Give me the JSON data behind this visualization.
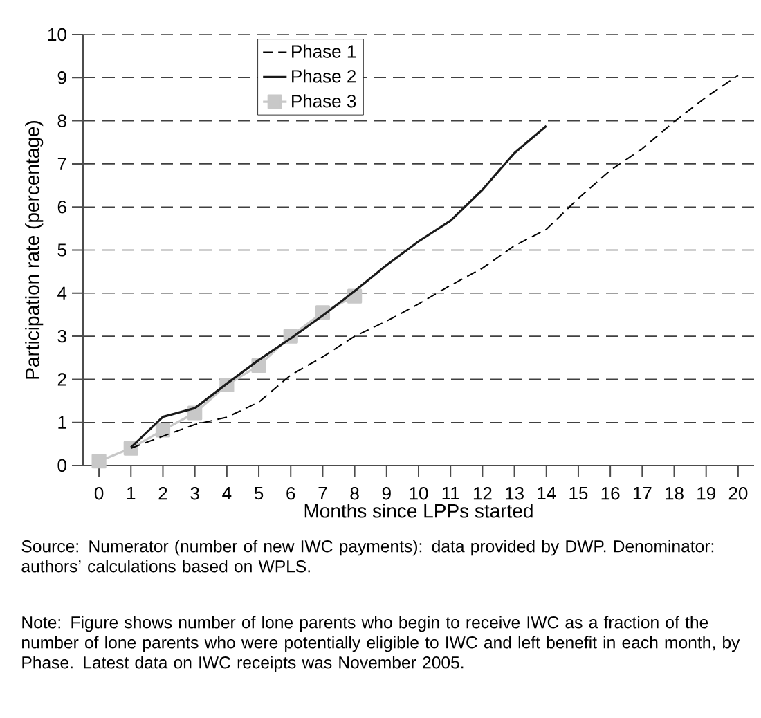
{
  "chart_data": {
    "type": "line",
    "xlabel": "Months since LPPs started",
    "ylabel": "Participation rate (percentage)",
    "x": [
      0,
      1,
      2,
      3,
      4,
      5,
      6,
      7,
      8,
      9,
      10,
      11,
      12,
      13,
      14,
      15,
      16,
      17,
      18,
      19,
      20
    ],
    "xlim": [
      -0.5,
      20.5
    ],
    "xticks": [
      0,
      1,
      2,
      3,
      4,
      5,
      6,
      7,
      8,
      9,
      10,
      11,
      12,
      13,
      14,
      15,
      16,
      17,
      18,
      19,
      20
    ],
    "ylim": [
      0,
      10
    ],
    "yticks": [
      0,
      1,
      2,
      3,
      4,
      5,
      6,
      7,
      8,
      9,
      10
    ],
    "grid": "y",
    "legend": "top left",
    "series": [
      {
        "name": "Phase 1",
        "color": "#000000",
        "line_style": "dashed",
        "marker": "none",
        "values": [
          null,
          0.4,
          0.68,
          0.95,
          1.12,
          1.47,
          2.1,
          2.52,
          3.0,
          3.35,
          3.75,
          4.18,
          4.58,
          5.1,
          5.48,
          6.2,
          6.85,
          7.35,
          7.98,
          8.55,
          9.05
        ]
      },
      {
        "name": "Phase 2",
        "color": "#1a1a1a",
        "line_style": "solid",
        "marker": "none",
        "values": [
          null,
          0.42,
          1.13,
          1.33,
          1.9,
          2.45,
          2.95,
          3.48,
          4.05,
          4.65,
          5.2,
          5.68,
          6.4,
          7.25,
          7.88,
          null,
          null,
          null,
          null,
          null,
          null
        ]
      },
      {
        "name": "Phase 3",
        "color": "#c8c8c8",
        "line_style": "solid",
        "marker": "square",
        "values": [
          0.1,
          0.4,
          0.82,
          1.22,
          1.87,
          2.32,
          3.0,
          3.55,
          3.93,
          null,
          null,
          null,
          null,
          null,
          null,
          null,
          null,
          null,
          null,
          null,
          null
        ]
      }
    ],
    "annotations": [
      "Source: Numerator (number of new IWC payments): data provided by DWP. Denominator: authors’ calculations based on WPLS.",
      "Note: Figure shows number of lone parents who begin to receive IWC as a fraction of the number of lone parents who were potentially eligible to IWC and left benefit in each month, by Phase. Latest data on IWC receipts was November 2005."
    ]
  }
}
